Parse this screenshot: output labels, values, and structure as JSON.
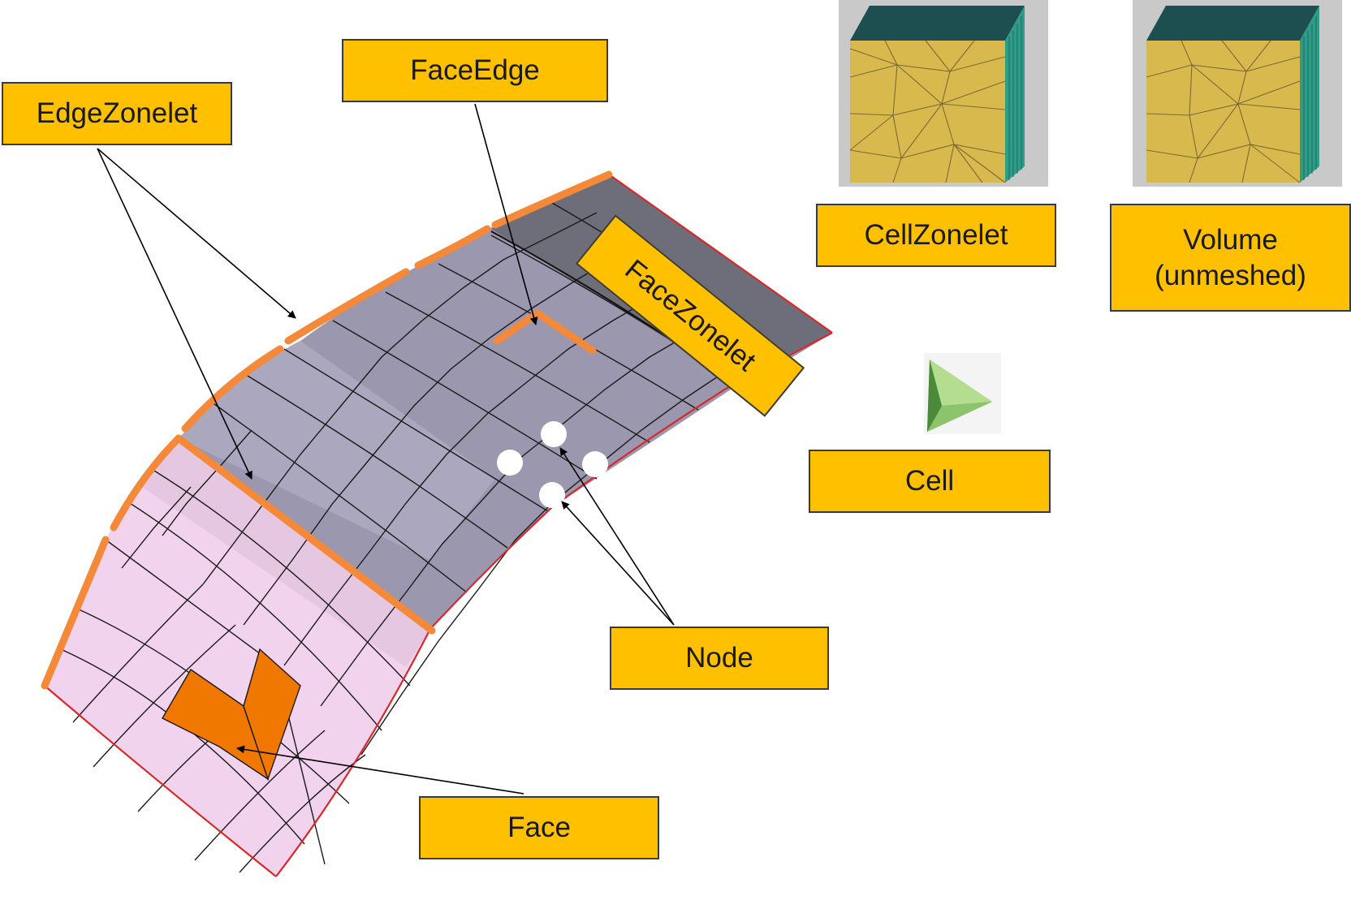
{
  "labels": {
    "edge_zonelet": "EdgeZonelet",
    "face_edge": "FaceEdge",
    "face_zonelet": "FaceZonelet",
    "cell_zonelet": "CellZonelet",
    "volume_line1": "Volume",
    "volume_line2": "(unmeshed)",
    "cell": "Cell",
    "node": "Node",
    "face": "Face"
  },
  "colors": {
    "label_fill": "#FFC000",
    "label_border": "#3a3a3a",
    "edge_highlight": "#F5893A",
    "face_highlight": "#F07800",
    "boundary_red": "#D42A2A",
    "zone_pink": "#F2D3EE",
    "zone_gray": "#9B97AE",
    "zone_dark": "#6E6E7A",
    "cube_yellow": "#D8B94E",
    "cube_teal": "#2E9C86",
    "cube_top": "#1E4F50",
    "cell_green": "#8BC46A"
  },
  "icons": [
    "cube-meshed-icon",
    "cube-unmeshed-icon",
    "tetrahedron-icon",
    "node-dot-icon"
  ]
}
